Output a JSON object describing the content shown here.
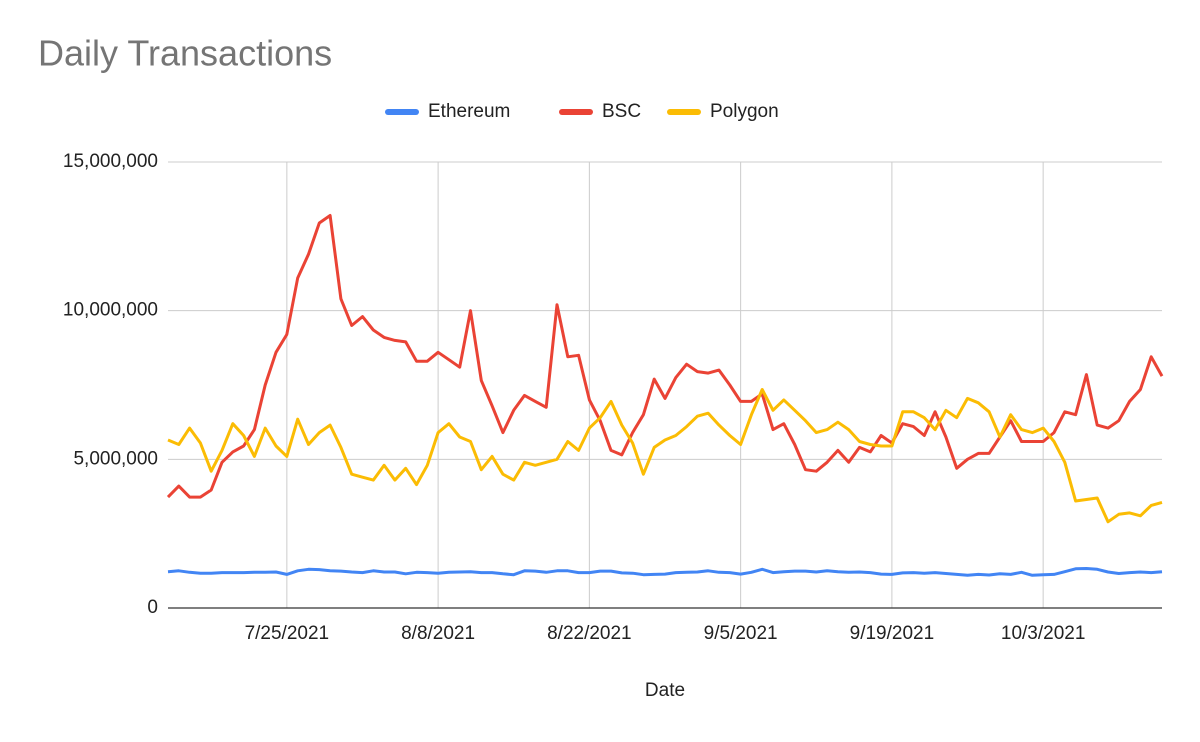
{
  "chart_data": {
    "type": "line",
    "title": "Daily Transactions",
    "x_label": "Date",
    "legend": "top",
    "grid": true,
    "x": [
      "7/14/2021",
      "7/15/2021",
      "7/16/2021",
      "7/17/2021",
      "7/18/2021",
      "7/19/2021",
      "7/20/2021",
      "7/21/2021",
      "7/22/2021",
      "7/23/2021",
      "7/24/2021",
      "7/25/2021",
      "7/26/2021",
      "7/27/2021",
      "7/28/2021",
      "7/29/2021",
      "7/30/2021",
      "7/31/2021",
      "8/1/2021",
      "8/2/2021",
      "8/3/2021",
      "8/4/2021",
      "8/5/2021",
      "8/6/2021",
      "8/7/2021",
      "8/8/2021",
      "8/9/2021",
      "8/10/2021",
      "8/11/2021",
      "8/12/2021",
      "8/13/2021",
      "8/14/2021",
      "8/15/2021",
      "8/16/2021",
      "8/17/2021",
      "8/18/2021",
      "8/19/2021",
      "8/20/2021",
      "8/21/2021",
      "8/22/2021",
      "8/23/2021",
      "8/24/2021",
      "8/25/2021",
      "8/26/2021",
      "8/27/2021",
      "8/28/2021",
      "8/29/2021",
      "8/30/2021",
      "8/31/2021",
      "9/1/2021",
      "9/2/2021",
      "9/3/2021",
      "9/4/2021",
      "9/5/2021",
      "9/6/2021",
      "9/7/2021",
      "9/8/2021",
      "9/9/2021",
      "9/10/2021",
      "9/11/2021",
      "9/12/2021",
      "9/13/2021",
      "9/14/2021",
      "9/15/2021",
      "9/16/2021",
      "9/17/2021",
      "9/18/2021",
      "9/19/2021",
      "9/20/2021",
      "9/21/2021",
      "9/22/2021",
      "9/23/2021",
      "9/24/2021",
      "9/25/2021",
      "9/26/2021",
      "9/27/2021",
      "9/28/2021",
      "9/29/2021",
      "9/30/2021",
      "10/1/2021",
      "10/2/2021",
      "10/3/2021",
      "10/4/2021",
      "10/5/2021",
      "10/6/2021",
      "10/7/2021",
      "10/8/2021",
      "10/9/2021",
      "10/10/2021",
      "10/11/2021",
      "10/12/2021",
      "10/13/2021",
      "10/14/2021"
    ],
    "xlim": [
      "7/14/2021",
      "10/14/2021"
    ],
    "xticks": [
      "7/25/2021",
      "8/8/2021",
      "8/22/2021",
      "9/5/2021",
      "9/19/2021",
      "10/3/2021"
    ],
    "ylim": [
      0,
      15000000
    ],
    "yticks": [
      0,
      {
        "value": 5000000,
        "label": "5,000,000"
      },
      {
        "value": 10000000,
        "label": "10,000,000"
      },
      {
        "value": 15000000,
        "label": "15,000,000"
      }
    ],
    "series": [
      {
        "name": "Ethereum",
        "color": "#4285f4",
        "values": [
          1220000,
          1250000,
          1200000,
          1170000,
          1170000,
          1190000,
          1190000,
          1190000,
          1200000,
          1200000,
          1210000,
          1130000,
          1250000,
          1300000,
          1290000,
          1250000,
          1240000,
          1210000,
          1190000,
          1250000,
          1210000,
          1210000,
          1150000,
          1200000,
          1190000,
          1170000,
          1200000,
          1210000,
          1220000,
          1190000,
          1190000,
          1150000,
          1120000,
          1250000,
          1240000,
          1200000,
          1250000,
          1250000,
          1190000,
          1190000,
          1240000,
          1240000,
          1180000,
          1170000,
          1120000,
          1130000,
          1140000,
          1190000,
          1200000,
          1210000,
          1250000,
          1200000,
          1190000,
          1140000,
          1200000,
          1300000,
          1190000,
          1220000,
          1240000,
          1240000,
          1210000,
          1250000,
          1220000,
          1200000,
          1210000,
          1190000,
          1140000,
          1130000,
          1180000,
          1190000,
          1170000,
          1190000,
          1160000,
          1130000,
          1100000,
          1130000,
          1110000,
          1150000,
          1130000,
          1200000,
          1100000,
          1120000,
          1130000,
          1220000,
          1320000,
          1330000,
          1300000,
          1210000,
          1160000,
          1190000,
          1210000,
          1190000,
          1220000
        ]
      },
      {
        "name": "BSC",
        "color": "#ea4335",
        "values": [
          3730000,
          4100000,
          3730000,
          3730000,
          3970000,
          4900000,
          5250000,
          5450000,
          6000000,
          7500000,
          8600000,
          9200000,
          11100000,
          11900000,
          12950000,
          13200000,
          10400000,
          9500000,
          9800000,
          9350000,
          9100000,
          9000000,
          8950000,
          8300000,
          8300000,
          8600000,
          8350000,
          8100000,
          10000000,
          7650000,
          6800000,
          5900000,
          6650000,
          7150000,
          6950000,
          6750000,
          10200000,
          8450000,
          8500000,
          7000000,
          6300000,
          5300000,
          5150000,
          5900000,
          6500000,
          7700000,
          7050000,
          7750000,
          8200000,
          7950000,
          7900000,
          8000000,
          7500000,
          6950000,
          6950000,
          7200000,
          6000000,
          6200000,
          5500000,
          4650000,
          4600000,
          4900000,
          5300000,
          4900000,
          5400000,
          5250000,
          5800000,
          5550000,
          6200000,
          6100000,
          5800000,
          6600000,
          5750000,
          4700000,
          5000000,
          5200000,
          5200000,
          5750000,
          6300000,
          5600000,
          5600000,
          5600000,
          5900000,
          6600000,
          6500000,
          7850000,
          6150000,
          6050000,
          6300000,
          6950000,
          7350000,
          8450000,
          7800000
        ]
      },
      {
        "name": "Polygon",
        "color": "#fbbc04",
        "values": [
          5650000,
          5500000,
          6050000,
          5550000,
          4600000,
          5300000,
          6200000,
          5800000,
          5100000,
          6050000,
          5450000,
          5100000,
          6350000,
          5500000,
          5900000,
          6150000,
          5400000,
          4500000,
          4400000,
          4300000,
          4800000,
          4300000,
          4700000,
          4150000,
          4800000,
          5900000,
          6200000,
          5750000,
          5600000,
          4650000,
          5100000,
          4500000,
          4300000,
          4900000,
          4800000,
          4900000,
          5000000,
          5600000,
          5300000,
          6050000,
          6400000,
          6950000,
          6150000,
          5550000,
          4500000,
          5400000,
          5650000,
          5800000,
          6100000,
          6450000,
          6550000,
          6150000,
          5800000,
          5500000,
          6500000,
          7350000,
          6650000,
          7000000,
          6650000,
          6300000,
          5900000,
          6000000,
          6250000,
          6000000,
          5600000,
          5500000,
          5450000,
          5450000,
          6600000,
          6600000,
          6400000,
          6000000,
          6650000,
          6400000,
          7050000,
          6900000,
          6600000,
          5750000,
          6500000,
          6000000,
          5900000,
          6050000,
          5600000,
          4900000,
          3600000,
          3650000,
          3700000,
          2900000,
          3150000,
          3200000,
          3100000,
          3450000,
          3550000
        ]
      }
    ]
  }
}
